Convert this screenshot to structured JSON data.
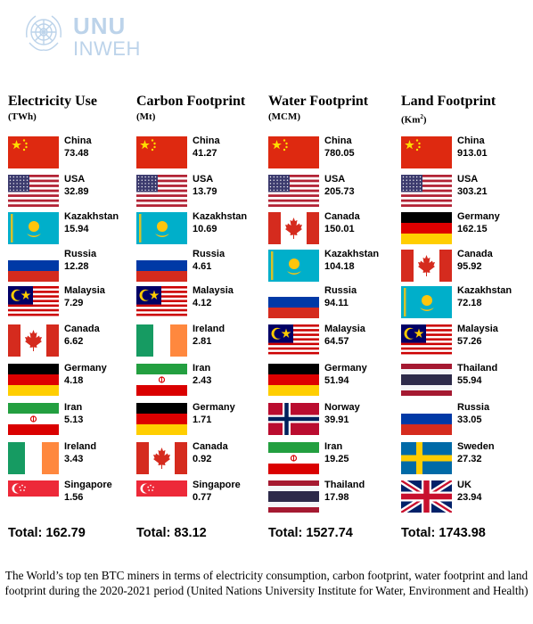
{
  "logo": {
    "line1": "UNU",
    "line2": "INWEH"
  },
  "columns": [
    {
      "title": "Electricity Use",
      "unit": "(TWh)",
      "unit_sup": "",
      "total": "Total: 162.79",
      "rows": [
        {
          "country": "China",
          "value": "73.48",
          "flag": "china"
        },
        {
          "country": "USA",
          "value": "32.89",
          "flag": "usa"
        },
        {
          "country": "Kazakhstan",
          "value": "15.94",
          "flag": "kazakhstan"
        },
        {
          "country": "Russia",
          "value": "12.28",
          "flag": "russia"
        },
        {
          "country": "Malaysia",
          "value": "7.29",
          "flag": "malaysia"
        },
        {
          "country": "Canada",
          "value": "6.62",
          "flag": "canada"
        },
        {
          "country": "Germany",
          "value": "4.18",
          "flag": "germany"
        },
        {
          "country": "Iran",
          "value": "5.13",
          "flag": "iran"
        },
        {
          "country": "Ireland",
          "value": "3.43",
          "flag": "ireland"
        },
        {
          "country": "Singapore",
          "value": "1.56",
          "flag": "singapore"
        }
      ]
    },
    {
      "title": "Carbon Footprint",
      "unit": "(Mt)",
      "unit_sup": "",
      "total": "Total: 83.12",
      "rows": [
        {
          "country": "China",
          "value": "41.27",
          "flag": "china"
        },
        {
          "country": "USA",
          "value": "13.79",
          "flag": "usa"
        },
        {
          "country": "Kazakhstan",
          "value": "10.69",
          "flag": "kazakhstan"
        },
        {
          "country": "Russia",
          "value": "4.61",
          "flag": "russia"
        },
        {
          "country": "Malaysia",
          "value": "4.12",
          "flag": "malaysia"
        },
        {
          "country": "Ireland",
          "value": "2.81",
          "flag": "ireland"
        },
        {
          "country": "Iran",
          "value": "2.43",
          "flag": "iran"
        },
        {
          "country": "Germany",
          "value": "1.71",
          "flag": "germany"
        },
        {
          "country": "Canada",
          "value": "0.92",
          "flag": "canada"
        },
        {
          "country": "Singapore",
          "value": "0.77",
          "flag": "singapore"
        }
      ]
    },
    {
      "title": "Water Footprint",
      "unit": "(MCM)",
      "unit_sup": "",
      "total": "Total: 1527.74",
      "rows": [
        {
          "country": "China",
          "value": "780.05",
          "flag": "china"
        },
        {
          "country": "USA",
          "value": "205.73",
          "flag": "usa"
        },
        {
          "country": "Canada",
          "value": "150.01",
          "flag": "canada"
        },
        {
          "country": "Kazakhstan",
          "value": "104.18",
          "flag": "kazakhstan"
        },
        {
          "country": "Russia",
          "value": "94.11",
          "flag": "russia"
        },
        {
          "country": "Malaysia",
          "value": "64.57",
          "flag": "malaysia"
        },
        {
          "country": "Germany",
          "value": "51.94",
          "flag": "germany"
        },
        {
          "country": "Norway",
          "value": "39.91",
          "flag": "norway"
        },
        {
          "country": "Iran",
          "value": "19.25",
          "flag": "iran"
        },
        {
          "country": "Thailand",
          "value": "17.98",
          "flag": "thailand"
        }
      ]
    },
    {
      "title": "Land Footprint",
      "unit": "(Km",
      "unit_sup": "2",
      "unit_close": ")",
      "total": "Total: 1743.98",
      "rows": [
        {
          "country": "China",
          "value": "913.01",
          "flag": "china"
        },
        {
          "country": "USA",
          "value": "303.21",
          "flag": "usa"
        },
        {
          "country": "Germany",
          "value": "162.15",
          "flag": "germany"
        },
        {
          "country": "Canada",
          "value": "95.92",
          "flag": "canada"
        },
        {
          "country": "Kazakhstan",
          "value": "72.18",
          "flag": "kazakhstan"
        },
        {
          "country": "Malaysia",
          "value": "57.26",
          "flag": "malaysia"
        },
        {
          "country": "Thailand",
          "value": "55.94",
          "flag": "thailand"
        },
        {
          "country": "Russia",
          "value": "33.05",
          "flag": "russia"
        },
        {
          "country": "Sweden",
          "value": "27.32",
          "flag": "sweden"
        },
        {
          "country": "UK",
          "value": "23.94",
          "flag": "uk"
        }
      ]
    }
  ],
  "caption": "The World’s top ten BTC miners in terms of electricity consumption, carbon footprint, water footprint and land footprint during the 2020-2021 period (United Nations University Institute for Water, Environment and Health)"
}
